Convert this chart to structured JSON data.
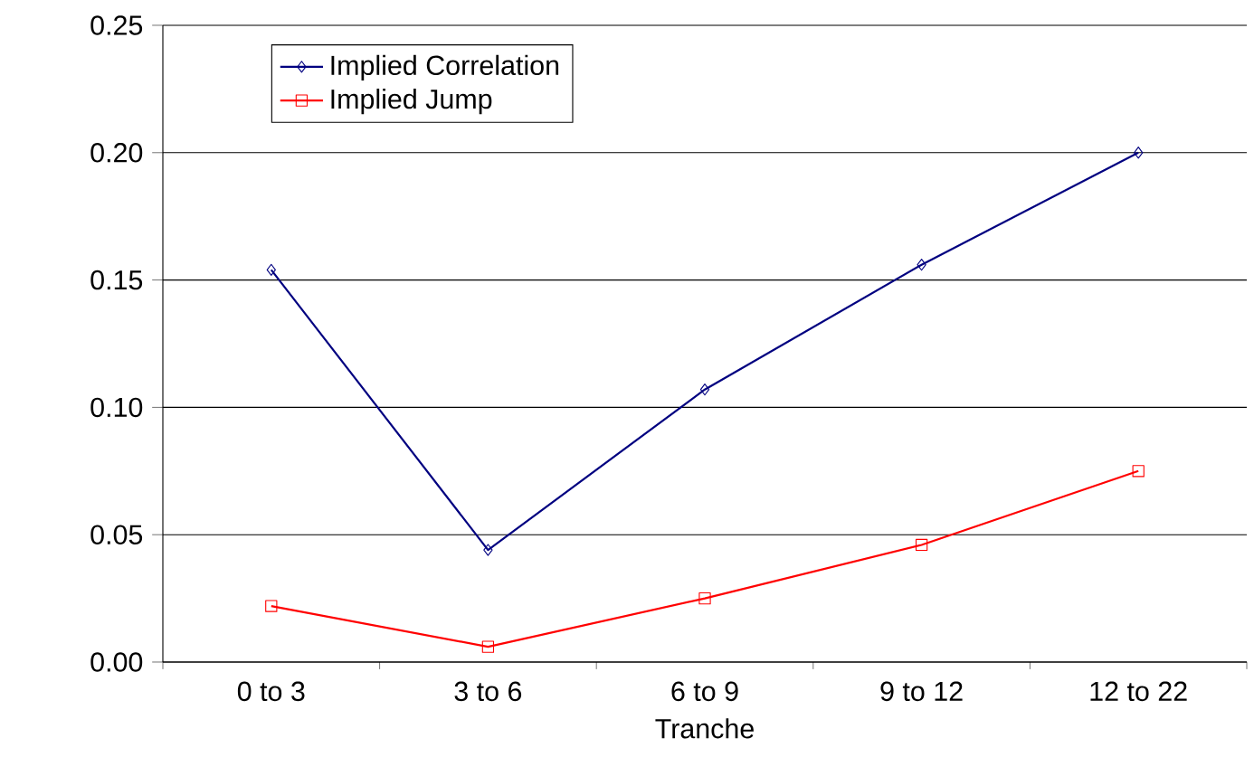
{
  "chart_data": {
    "type": "line",
    "xlabel": "Tranche",
    "categories": [
      "0 to 3",
      "3 to 6",
      "6 to 9",
      "9 to 12",
      "12 to 22"
    ],
    "series": [
      {
        "name": "Implied Correlation",
        "color": "#000080",
        "marker": "diamond",
        "values": [
          0.154,
          0.044,
          0.107,
          0.156,
          0.2
        ]
      },
      {
        "name": "Implied Jump",
        "color": "#ff0000",
        "marker": "square",
        "values": [
          0.022,
          0.006,
          0.025,
          0.046,
          0.075
        ]
      }
    ],
    "ylim": [
      0,
      0.25
    ],
    "yticks": [
      {
        "value": 0,
        "label": "0.00"
      },
      {
        "value": 0.05,
        "label": "0.05"
      },
      {
        "value": 0.1,
        "label": "0.10"
      },
      {
        "value": 0.15,
        "label": "0.15"
      },
      {
        "value": 0.2,
        "label": "0.20"
      },
      {
        "value": 0.25,
        "label": "0.25"
      }
    ],
    "grid": "y",
    "legend": "top left",
    "line_style": "solid"
  }
}
